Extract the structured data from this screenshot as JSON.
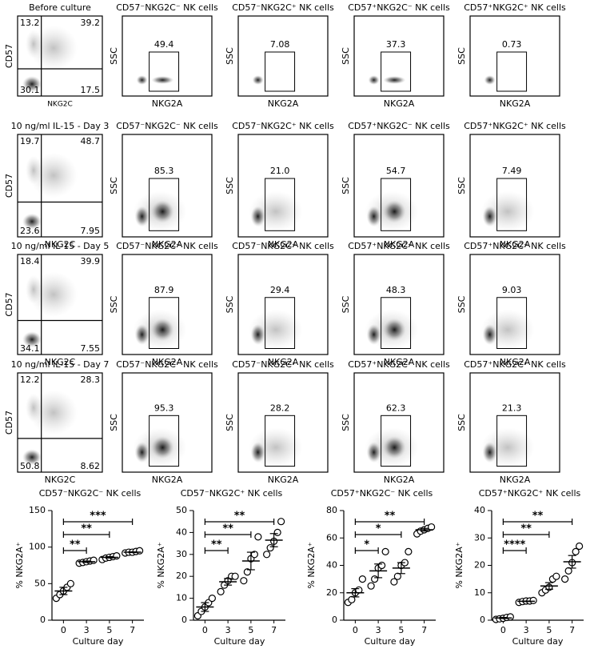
{
  "flow_rows": [
    {
      "title": "Before culture",
      "quadrants": [
        "13.2",
        "39.2",
        "30.1",
        "17.5"
      ],
      "y_label": "CD57",
      "x_label": "NKG2C",
      "gates": [
        {
          "title": "CD57⁻NKG2C⁻ NK cells",
          "y_label": "SSC",
          "x_label": "NKG2A",
          "value": "49.4"
        },
        {
          "title": "CD57⁻NKG2C⁺ NK cells",
          "y_label": "SSC",
          "x_label": "NKG2A",
          "value": "7.08"
        },
        {
          "title": "CD57⁺NKG2C⁻ NK cells",
          "y_label": "SSC",
          "x_label": "NKG2A",
          "value": "37.3"
        },
        {
          "title": "CD57⁺NKG2C⁺ NK cells",
          "y_label": "SSC",
          "x_label": "NKG2A",
          "value": "0.73"
        }
      ]
    },
    {
      "title": "10 ng/ml IL-15 - Day 3",
      "quadrants": [
        "19.7",
        "48.7",
        "23.6",
        "7.95"
      ],
      "y_label": "CD57",
      "x_label": "NKG2C",
      "gates": [
        {
          "title": "CD57⁻NKG2C⁻ NK cells",
          "y_label": "SSC",
          "x_label": "NKG2A",
          "value": "85.3"
        },
        {
          "title": "CD57⁻NKG2C⁺ NK cells",
          "y_label": "SSC",
          "x_label": "NKG2A",
          "value": "21.0"
        },
        {
          "title": "CD57⁺NKG2C⁻ NK cells",
          "y_label": "SSC",
          "x_label": "NKG2A",
          "value": "54.7"
        },
        {
          "title": "CD57⁺NKG2C⁺ NK cells",
          "y_label": "SSC",
          "x_label": "NKG2A",
          "value": "7.49"
        }
      ]
    },
    {
      "title": "10 ng/ml IL-15 - Day 5",
      "quadrants": [
        "18.4",
        "39.9",
        "34.1",
        "7.55"
      ],
      "y_label": "CD57",
      "x_label": "NKG2C",
      "gates": [
        {
          "title": "CD57⁻NKG2C⁻ NK cells",
          "y_label": "SSC",
          "x_label": "NKG2A",
          "value": "87.9"
        },
        {
          "title": "CD57⁻NKG2C⁺ NK cells",
          "y_label": "SSC",
          "x_label": "NKG2A",
          "value": "29.4"
        },
        {
          "title": "CD57⁺NKG2C⁻ NK cells",
          "y_label": "SSC",
          "x_label": "NKG2A",
          "value": "48.3"
        },
        {
          "title": "CD57⁺NKG2C⁺ NK cells",
          "y_label": "SSC",
          "x_label": "NKG2A",
          "value": "9.03"
        }
      ]
    },
    {
      "title": "10 ng/ml IL-15 - Day 7",
      "quadrants": [
        "12.2",
        "28.3",
        "50.8",
        "8.62"
      ],
      "y_label": "CD57",
      "x_label": "NKG2C",
      "gates": [
        {
          "title": "CD57⁻NKG2C⁻ NK cells",
          "y_label": "SSC",
          "x_label": "NKG2A",
          "value": "95.3"
        },
        {
          "title": "CD57⁻NKG2C⁺ NK cells",
          "y_label": "SSC",
          "x_label": "NKG2A",
          "value": "28.2"
        },
        {
          "title": "CD57⁺NKG2C⁻ NK cells",
          "y_label": "SSC",
          "x_label": "NKG2A",
          "value": "62.3"
        },
        {
          "title": "CD57⁺NKG2C⁺ NK cells",
          "y_label": "SSC",
          "x_label": "NKG2A",
          "value": "21.3"
        }
      ]
    }
  ],
  "chart_data": [
    {
      "type": "dot",
      "title": "CD57⁻NKG2C⁻ NK cells",
      "x_label": "Culture day",
      "y_label": "% NKG2A⁺",
      "categories": [
        "0",
        "3",
        "5",
        "7"
      ],
      "points": [
        [
          30,
          35,
          40,
          45,
          50
        ],
        [
          78,
          79,
          80,
          81,
          82
        ],
        [
          83,
          85,
          86,
          87,
          88
        ],
        [
          92,
          93,
          93,
          94,
          95
        ]
      ],
      "mean": [
        40,
        80,
        86,
        93
      ],
      "sem": [
        5,
        1,
        1,
        0.5
      ],
      "ylim": [
        0,
        150
      ],
      "yticks": [
        0,
        50,
        100,
        150
      ],
      "annotations": [
        {
          "label": "**",
          "x": [
            "0",
            "3"
          ]
        },
        {
          "label": "**",
          "x": [
            "0",
            "5"
          ]
        },
        {
          "label": "***",
          "x": [
            "0",
            "7"
          ]
        }
      ]
    },
    {
      "type": "dot",
      "title": "CD57⁻NKG2C⁺ NK cells",
      "x_label": "Culture day",
      "y_label": "% NKG2A⁺",
      "categories": [
        "0",
        "3",
        "5",
        "7"
      ],
      "points": [
        [
          2,
          4,
          6,
          8,
          10
        ],
        [
          13,
          16,
          18,
          20,
          20
        ],
        [
          18,
          22,
          28,
          30,
          38
        ],
        [
          30,
          33,
          36,
          40,
          45
        ]
      ],
      "mean": [
        6,
        17.5,
        27,
        36.5
      ],
      "sem": [
        2,
        1.5,
        4,
        3
      ],
      "ylim": [
        0,
        50
      ],
      "yticks": [
        0,
        10,
        20,
        30,
        40,
        50
      ],
      "annotations": [
        {
          "label": "**",
          "x": [
            "0",
            "3"
          ]
        },
        {
          "label": "**",
          "x": [
            "0",
            "5"
          ]
        },
        {
          "label": "**",
          "x": [
            "0",
            "7"
          ]
        }
      ]
    },
    {
      "type": "dot",
      "title": "CD57⁺NKG2C⁻ NK cells",
      "x_label": "Culture day",
      "y_label": "% NKG2A⁺",
      "categories": [
        "0",
        "3",
        "5",
        "7"
      ],
      "points": [
        [
          13,
          15,
          20,
          22,
          30
        ],
        [
          25,
          30,
          38,
          40,
          50
        ],
        [
          28,
          32,
          40,
          42,
          50
        ],
        [
          63,
          65,
          66,
          67,
          68
        ]
      ],
      "mean": [
        20,
        36,
        38,
        66
      ],
      "sem": [
        3,
        5,
        4,
        1
      ],
      "ylim": [
        0,
        80
      ],
      "yticks": [
        0,
        20,
        40,
        60,
        80
      ],
      "annotations": [
        {
          "label": "*",
          "x": [
            "0",
            "3"
          ]
        },
        {
          "label": "*",
          "x": [
            "0",
            "5"
          ]
        },
        {
          "label": "**",
          "x": [
            "0",
            "7"
          ]
        }
      ]
    },
    {
      "type": "dot",
      "title": "CD57⁺NKG2C⁺ NK cells",
      "x_label": "Culture day",
      "y_label": "% NKG2A⁺",
      "categories": [
        "0",
        "3",
        "5",
        "7"
      ],
      "points": [
        [
          0.3,
          0.5,
          0.7,
          1,
          1.2
        ],
        [
          6.5,
          6.8,
          7,
          7,
          7.2
        ],
        [
          10,
          11,
          12,
          15,
          16
        ],
        [
          15,
          18,
          21,
          25,
          27
        ]
      ],
      "mean": [
        0.8,
        6.9,
        12.5,
        21.3
      ],
      "sem": [
        0.2,
        0.1,
        1.2,
        2.3
      ],
      "ylim": [
        0,
        40
      ],
      "yticks": [
        0,
        10,
        20,
        30,
        40
      ],
      "annotations": [
        {
          "label": "****",
          "x": [
            "0",
            "3"
          ]
        },
        {
          "label": "**",
          "x": [
            "0",
            "5"
          ]
        },
        {
          "label": "**",
          "x": [
            "0",
            "7"
          ]
        }
      ]
    }
  ]
}
